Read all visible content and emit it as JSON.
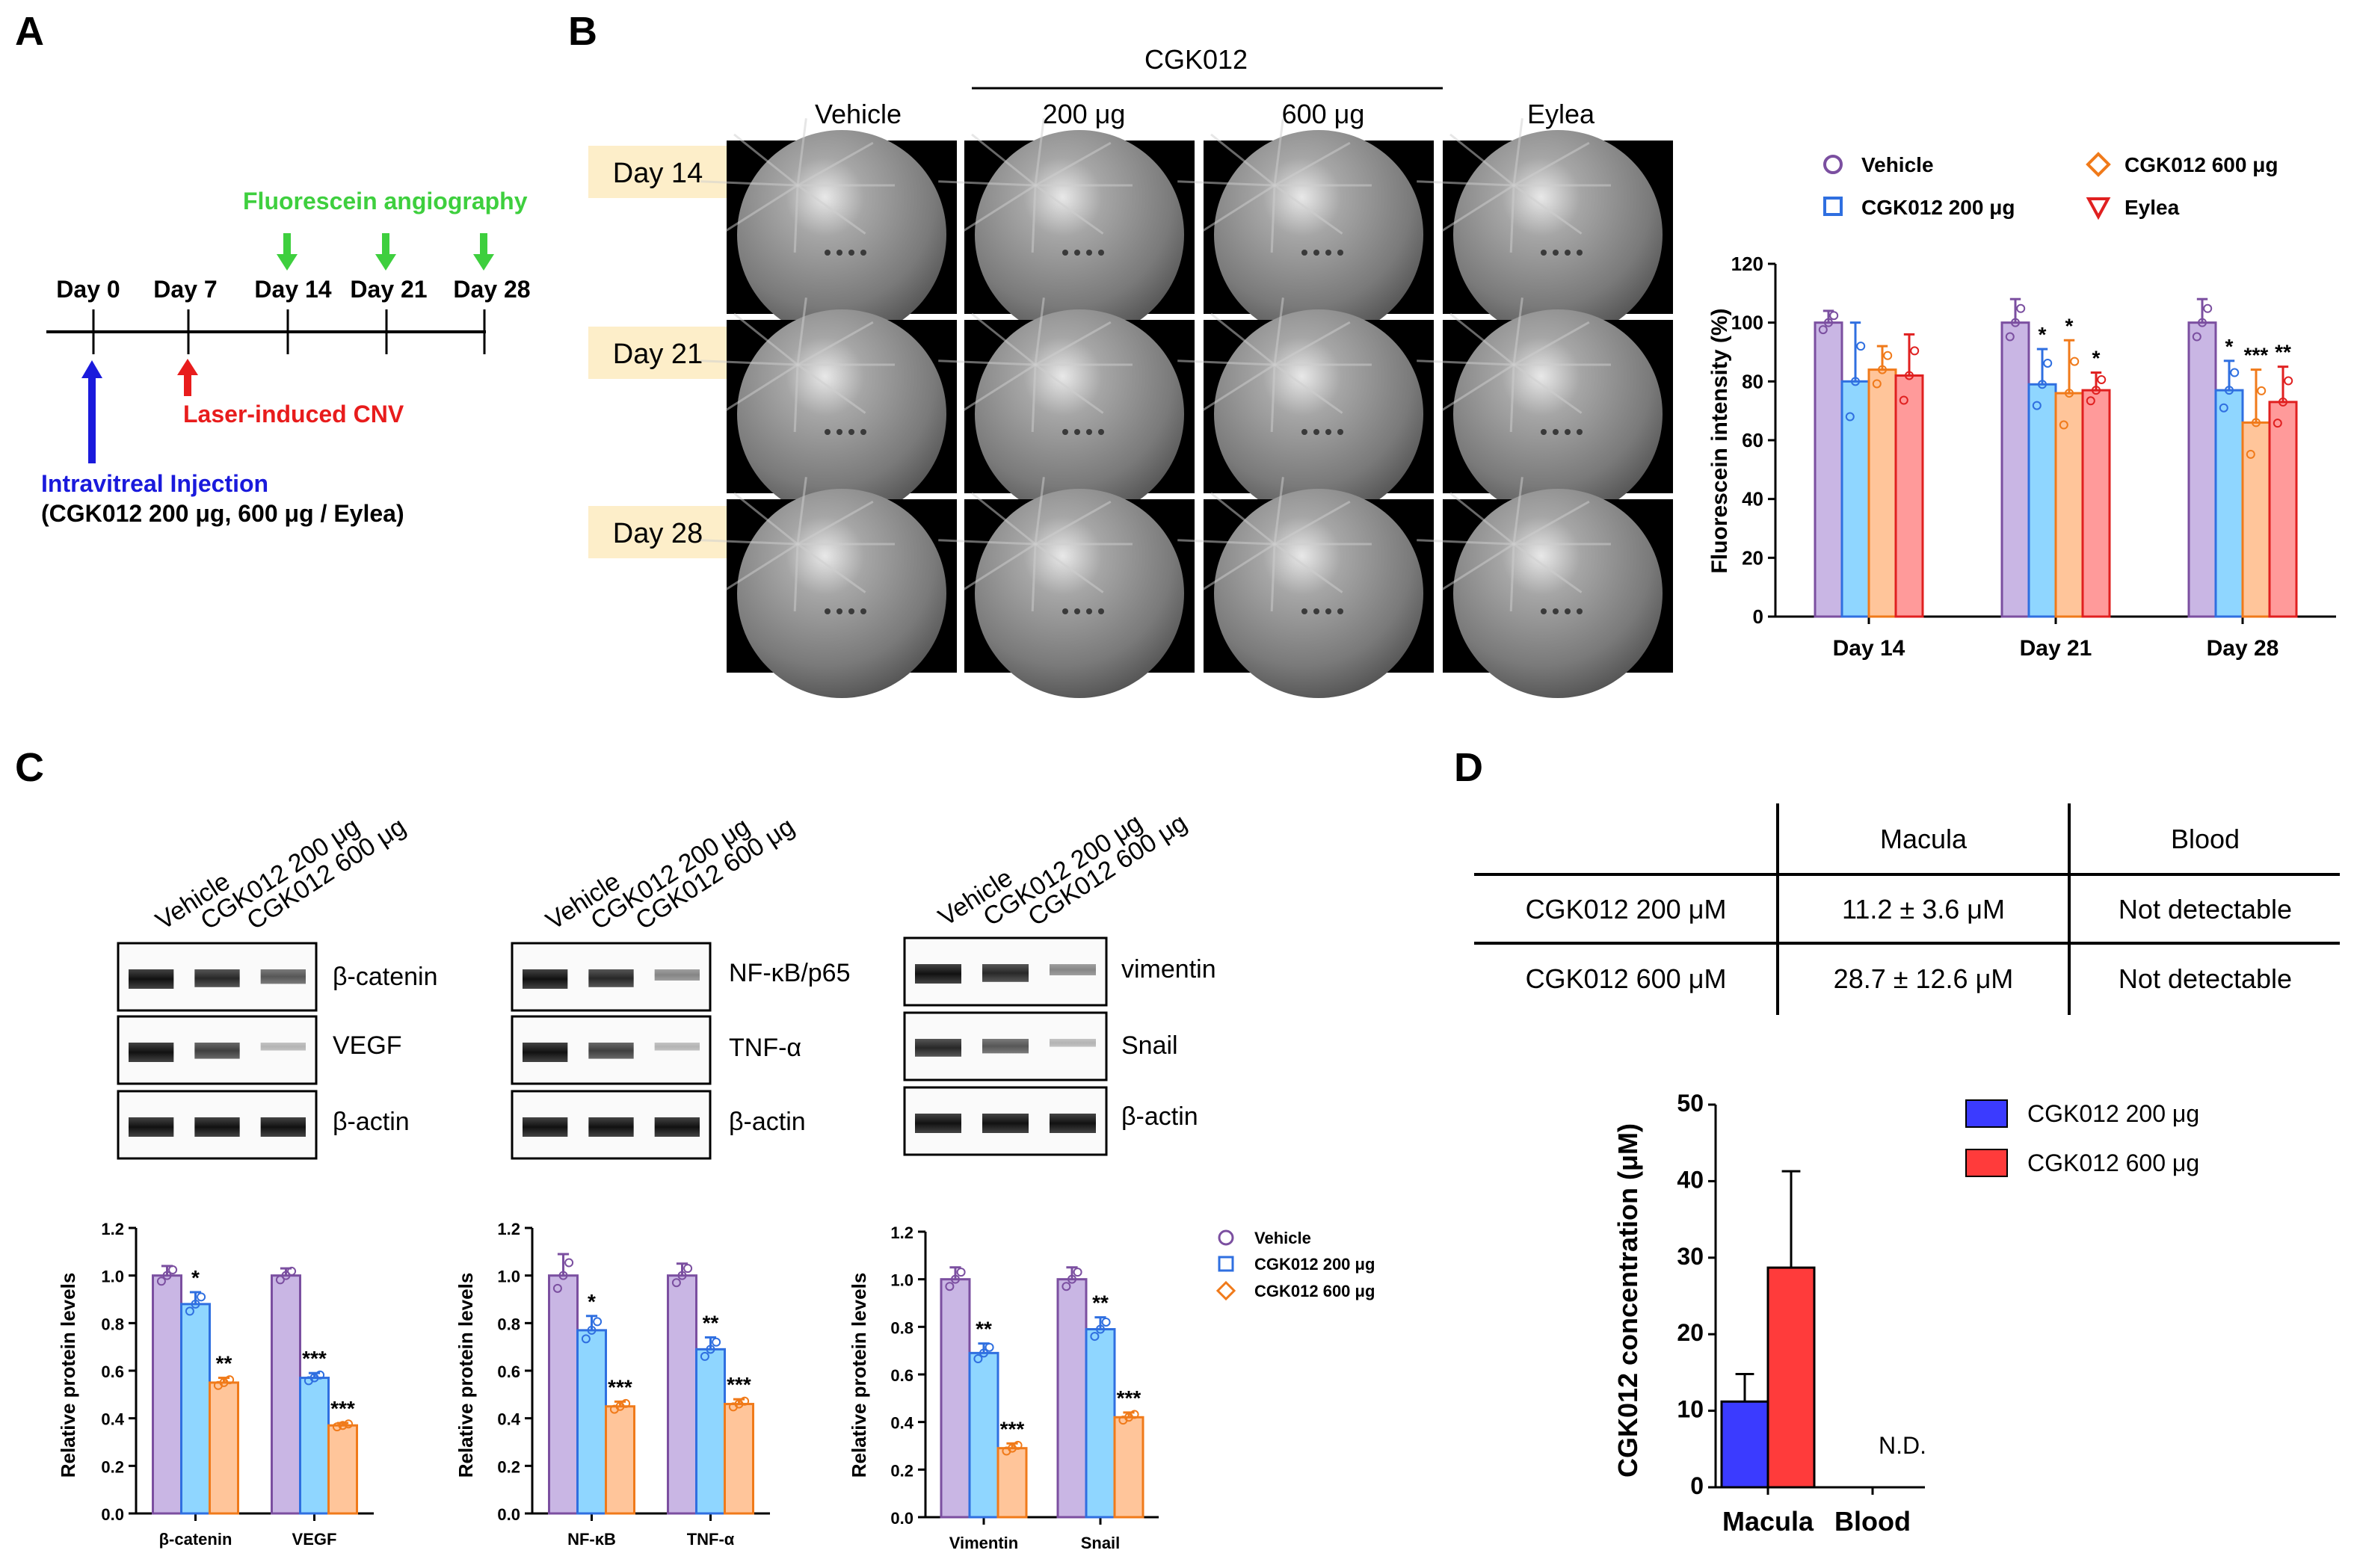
{
  "panels": {
    "A": "A",
    "B": "B",
    "C": "C",
    "D": "D"
  },
  "colors": {
    "vehicle": "#7b4fa0",
    "vehicle_fill": "#c9b6e4",
    "cgk200": "#2f6fe0",
    "cgk200_fill": "#8fd6ff",
    "cgk600": "#f07a1a",
    "cgk600_fill": "#ffc59a",
    "eylea": "#e02020",
    "eylea_fill": "#ff9a9a",
    "d200": "#3b3bff",
    "d600": "#ff3b3b",
    "fluor_green": "#3ecf3e",
    "day_label_bg": "#fdeec9"
  },
  "timeline": {
    "days": [
      "Day 0",
      "Day 7",
      "Day 14",
      "Day 21",
      "Day 28"
    ],
    "fluorescein_label": "Fluorescein angiography",
    "laser_label": "Laser-induced CNV",
    "injection_label": "Intravitreal Injection",
    "injection_detail": "(CGK012 200 μg, 600 μg / Eylea)"
  },
  "angiography": {
    "group_header": "CGK012",
    "columns": [
      "Vehicle",
      "200 μg",
      "600 μg",
      "Eylea"
    ],
    "rows": [
      "Day 14",
      "Day 21",
      "Day 28"
    ]
  },
  "chart_data": [
    {
      "id": "fluorescein",
      "type": "bar",
      "ylabel": "Fluorescein intensity (%)",
      "ylim": [
        0,
        120
      ],
      "yticks": [
        "0",
        "20",
        "40",
        "60",
        "80",
        "100",
        "120"
      ],
      "categories": [
        "Day 14",
        "Day 21",
        "Day 28"
      ],
      "series": [
        {
          "name": "Vehicle",
          "values": [
            100,
            100,
            100
          ],
          "err": [
            4,
            8,
            8
          ],
          "sig": [
            "",
            "",
            ""
          ]
        },
        {
          "name": "CGK012 200 μg",
          "values": [
            80,
            79,
            77
          ],
          "err": [
            20,
            12,
            10
          ],
          "sig": [
            "",
            "*",
            "*"
          ]
        },
        {
          "name": "CGK012 600 μg",
          "values": [
            84,
            76,
            66
          ],
          "err": [
            8,
            18,
            18
          ],
          "sig": [
            "",
            "*",
            "***"
          ]
        },
        {
          "name": "Eylea",
          "values": [
            82,
            77,
            73
          ],
          "err": [
            14,
            6,
            12
          ],
          "sig": [
            "",
            "*",
            "**"
          ]
        }
      ]
    },
    {
      "id": "c1",
      "type": "bar",
      "ylabel": "Relative protein levels",
      "ylim": [
        0,
        1.2
      ],
      "yticks": [
        "0.0",
        "0.2",
        "0.4",
        "0.6",
        "0.8",
        "1.0",
        "1.2"
      ],
      "categories": [
        "β-catenin",
        "VEGF"
      ],
      "series": [
        {
          "name": "Vehicle",
          "values": [
            1.0,
            1.0
          ],
          "err": [
            0.04,
            0.03
          ],
          "sig": [
            "",
            ""
          ]
        },
        {
          "name": "CGK012 200 μg",
          "values": [
            0.88,
            0.57
          ],
          "err": [
            0.05,
            0.02
          ],
          "sig": [
            "*",
            "***"
          ]
        },
        {
          "name": "CGK012 600 μg",
          "values": [
            0.55,
            0.37
          ],
          "err": [
            0.02,
            0.01
          ],
          "sig": [
            "**",
            "***"
          ]
        }
      ]
    },
    {
      "id": "c2",
      "type": "bar",
      "ylabel": "Relative protein levels",
      "ylim": [
        0,
        1.2
      ],
      "yticks": [
        "0.0",
        "0.2",
        "0.4",
        "0.6",
        "0.8",
        "1.0",
        "1.2"
      ],
      "categories": [
        "NF-κB",
        "TNF-α"
      ],
      "series": [
        {
          "name": "Vehicle",
          "values": [
            1.0,
            1.0
          ],
          "err": [
            0.09,
            0.05
          ],
          "sig": [
            "",
            ""
          ]
        },
        {
          "name": "CGK012 200 μg",
          "values": [
            0.77,
            0.69
          ],
          "err": [
            0.06,
            0.05
          ],
          "sig": [
            "*",
            "**"
          ]
        },
        {
          "name": "CGK012 600 μg",
          "values": [
            0.45,
            0.46
          ],
          "err": [
            0.02,
            0.02
          ],
          "sig": [
            "***",
            "***"
          ]
        }
      ]
    },
    {
      "id": "c3",
      "type": "bar",
      "ylabel": "Relative protein levels",
      "ylim": [
        0,
        1.2
      ],
      "yticks": [
        "0.0",
        "0.2",
        "0.4",
        "0.6",
        "0.8",
        "1.0",
        "1.2"
      ],
      "categories": [
        "Vimentin",
        "Snail"
      ],
      "series": [
        {
          "name": "Vehicle",
          "values": [
            1.0,
            1.0
          ],
          "err": [
            0.05,
            0.05
          ],
          "sig": [
            "",
            ""
          ]
        },
        {
          "name": "CGK012 200 μg",
          "values": [
            0.69,
            0.79
          ],
          "err": [
            0.04,
            0.05
          ],
          "sig": [
            "**",
            "**"
          ]
        },
        {
          "name": "CGK012 600 μg",
          "values": [
            0.29,
            0.42
          ],
          "err": [
            0.02,
            0.02
          ],
          "sig": [
            "***",
            "***"
          ]
        }
      ]
    },
    {
      "id": "d",
      "type": "bar",
      "ylabel": "CGK012 concentration (μM)",
      "ylim": [
        0,
        50
      ],
      "yticks": [
        "0",
        "10",
        "20",
        "30",
        "40",
        "50"
      ],
      "categories": [
        "Macula",
        "Blood"
      ],
      "annotation": "N.D.",
      "series": [
        {
          "name": "CGK012 200 μg",
          "values": [
            11.2,
            0
          ],
          "err": [
            3.6,
            0
          ]
        },
        {
          "name": "CGK012 600 μg",
          "values": [
            28.7,
            0
          ],
          "err": [
            12.6,
            0
          ]
        }
      ]
    }
  ],
  "legendB": [
    "Vehicle",
    "CGK012 600 μg",
    "CGK012 200 μg",
    "Eylea"
  ],
  "legendC": [
    "Vehicle",
    "CGK012 200 μg",
    "CGK012 600 μg"
  ],
  "blots": {
    "lanes": [
      "Vehicle",
      "CGK012 200 μg",
      "CGK012 600 μg"
    ],
    "group1": [
      "β-catenin",
      "VEGF",
      "β-actin"
    ],
    "group2": [
      "NF-κB/p65",
      "TNF-α",
      "β-actin"
    ],
    "group3": [
      "vimentin",
      "Snail",
      "β-actin"
    ]
  },
  "table": {
    "headers": [
      "",
      "Macula",
      "Blood"
    ],
    "rows": [
      [
        "CGK012 200 μM",
        "11.2 ± 3.6 μM",
        "Not detectable"
      ],
      [
        "CGK012 600 μM",
        "28.7 ± 12.6 μM",
        "Not detectable"
      ]
    ]
  }
}
